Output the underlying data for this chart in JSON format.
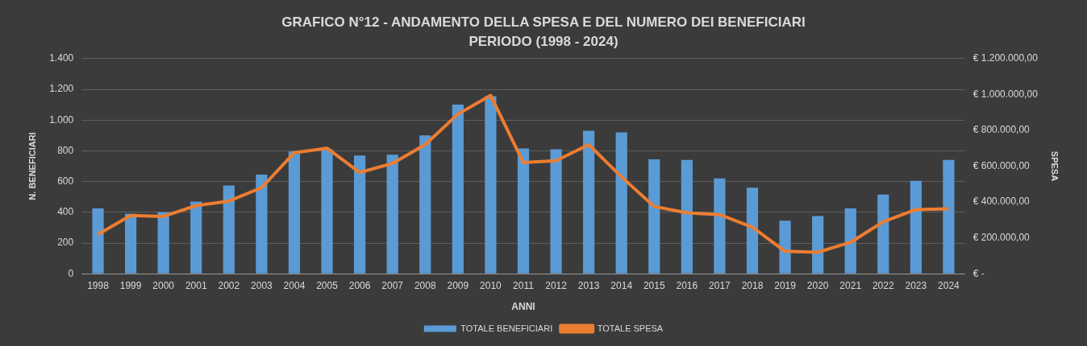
{
  "chart_data": {
    "type": "bar",
    "title": "GRAFICO N°12 - ANDAMENTO DELLA SPESA E DEL NUMERO DEI BENEFICIARI",
    "subtitle": "PERIODO (1998 - 2024)",
    "xlabel": "ANNI",
    "ylabel": "N. BENEFICIARI",
    "y2label": "SPESA",
    "categories": [
      "1998",
      "1999",
      "2000",
      "2001",
      "2002",
      "2003",
      "2004",
      "2005",
      "2006",
      "2007",
      "2008",
      "2009",
      "2010",
      "2011",
      "2012",
      "2013",
      "2014",
      "2015",
      "2016",
      "2017",
      "2018",
      "2019",
      "2020",
      "2021",
      "2022",
      "2023",
      "2024"
    ],
    "series": [
      {
        "name": "TOTALE BENEFICIARI",
        "color": "#5b9bd5",
        "values": [
          425,
          390,
          400,
          470,
          575,
          645,
          795,
          810,
          770,
          775,
          900,
          1100,
          1155,
          815,
          810,
          930,
          920,
          745,
          740,
          620,
          560,
          345,
          375,
          425,
          515,
          605,
          740
        ]
      },
      {
        "name": "TOTALE SPESA",
        "type": "line",
        "axis": "y2",
        "color": "#ed7d31",
        "values": [
          220000,
          325000,
          320000,
          380000,
          405000,
          480000,
          675000,
          700000,
          565000,
          615000,
          720000,
          890000,
          995000,
          620000,
          630000,
          720000,
          540000,
          375000,
          340000,
          330000,
          260000,
          125000,
          120000,
          175000,
          290000,
          358000,
          362000
        ]
      }
    ],
    "ylim": [
      0,
      1400
    ],
    "yticks": [
      0,
      {
        "value": 200,
        "label": "200"
      },
      {
        "value": 400,
        "label": "400"
      },
      {
        "value": 600,
        "label": "600"
      },
      {
        "value": 800,
        "label": "800"
      },
      {
        "value": 1000,
        "label": "1.000"
      },
      {
        "value": 1200,
        "label": "1.200"
      },
      {
        "value": 1400,
        "label": "1.400"
      }
    ],
    "y2lim": [
      0,
      1200000
    ],
    "y2ticks": [
      {
        "value": 0,
        "label": "€ -"
      },
      {
        "value": 200000,
        "label": "€ 200.000,00"
      },
      {
        "value": 400000,
        "label": "€ 400.000,00"
      },
      {
        "value": 600000,
        "label": "€ 600.000,00"
      },
      {
        "value": 800000,
        "label": "€ 800.000,00"
      },
      {
        "value": 1000000,
        "label": "€ 1.000.000,00"
      },
      {
        "value": 1200000,
        "label": "€ 1.200.000,00"
      }
    ],
    "grid": "y",
    "legend": "bottom",
    "marker": "none",
    "line_style": "solid"
  }
}
